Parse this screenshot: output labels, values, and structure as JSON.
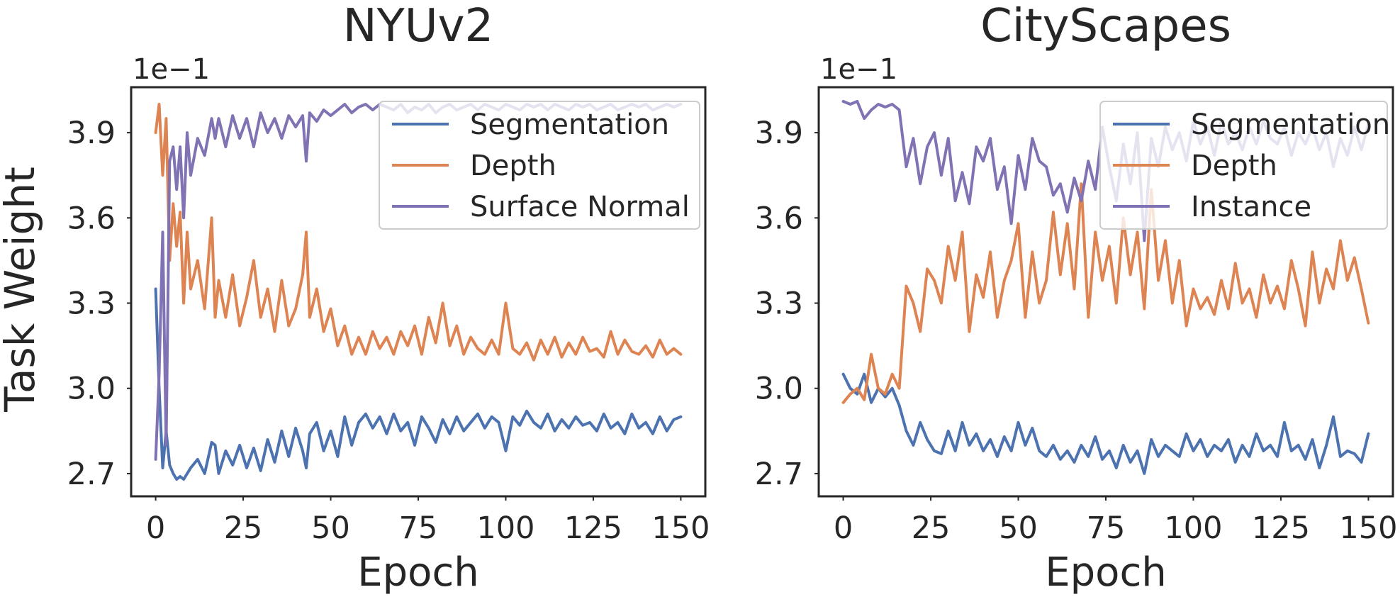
{
  "figure": {
    "ylabel": "Task Weight",
    "xlabel": "Epoch"
  },
  "chart_data": [
    {
      "type": "line",
      "title": "NYUv2",
      "xlabel": "Epoch",
      "ylabel": "Task Weight",
      "y_offset_label": "1e−1",
      "xlim": [
        -7,
        157
      ],
      "ylim": [
        2.62,
        4.06
      ],
      "xticks": [
        0,
        25,
        50,
        75,
        100,
        125,
        150
      ],
      "yticks": [
        2.7,
        3.0,
        3.3,
        3.6,
        3.9
      ],
      "ytick_labels": [
        "2.7",
        "3.0",
        "3.3",
        "3.6",
        "3.9"
      ],
      "grid": false,
      "legend_position": "top-right",
      "series": [
        {
          "name": "Segmentation",
          "color": "#4c72b0",
          "x": [
            0,
            1,
            2,
            3,
            4,
            5,
            6,
            7,
            8,
            10,
            12,
            14,
            16,
            17,
            18,
            20,
            22,
            24,
            26,
            28,
            30,
            32,
            34,
            36,
            38,
            40,
            42,
            43,
            44,
            46,
            48,
            50,
            52,
            54,
            56,
            58,
            60,
            62,
            64,
            66,
            68,
            70,
            72,
            74,
            76,
            78,
            80,
            82,
            84,
            86,
            88,
            90,
            92,
            94,
            96,
            98,
            100,
            102,
            104,
            106,
            108,
            110,
            112,
            114,
            116,
            118,
            120,
            122,
            124,
            126,
            128,
            130,
            132,
            134,
            136,
            138,
            140,
            142,
            144,
            146,
            148,
            150
          ],
          "y": [
            3.35,
            3.0,
            2.72,
            2.85,
            2.73,
            2.7,
            2.68,
            2.69,
            2.68,
            2.72,
            2.75,
            2.7,
            2.81,
            2.8,
            2.7,
            2.78,
            2.73,
            2.8,
            2.72,
            2.79,
            2.71,
            2.82,
            2.74,
            2.85,
            2.76,
            2.86,
            2.78,
            2.72,
            2.84,
            2.88,
            2.78,
            2.85,
            2.76,
            2.9,
            2.8,
            2.88,
            2.91,
            2.86,
            2.9,
            2.84,
            2.91,
            2.85,
            2.88,
            2.8,
            2.9,
            2.86,
            2.81,
            2.89,
            2.84,
            2.9,
            2.85,
            2.88,
            2.91,
            2.86,
            2.9,
            2.88,
            2.78,
            2.9,
            2.87,
            2.92,
            2.88,
            2.86,
            2.91,
            2.85,
            2.89,
            2.86,
            2.9,
            2.87,
            2.88,
            2.85,
            2.91,
            2.86,
            2.88,
            2.84,
            2.91,
            2.86,
            2.88,
            2.84,
            2.9,
            2.85,
            2.89,
            2.9
          ]
        },
        {
          "name": "Depth",
          "color": "#dd8452",
          "x": [
            0,
            1,
            2,
            3,
            4,
            5,
            6,
            7,
            8,
            9,
            10,
            12,
            14,
            16,
            17,
            18,
            20,
            22,
            24,
            26,
            28,
            30,
            32,
            34,
            36,
            38,
            40,
            42,
            43,
            44,
            46,
            48,
            50,
            52,
            54,
            56,
            58,
            60,
            62,
            64,
            66,
            68,
            70,
            72,
            74,
            76,
            78,
            80,
            82,
            84,
            86,
            88,
            90,
            92,
            94,
            96,
            98,
            100,
            102,
            104,
            106,
            108,
            110,
            112,
            114,
            116,
            118,
            120,
            122,
            124,
            126,
            128,
            130,
            132,
            134,
            136,
            138,
            140,
            142,
            144,
            146,
            148,
            150
          ],
          "y": [
            3.9,
            4.0,
            3.75,
            3.95,
            3.45,
            3.65,
            3.5,
            3.62,
            3.3,
            3.55,
            3.35,
            3.45,
            3.28,
            3.6,
            3.25,
            3.38,
            3.25,
            3.4,
            3.22,
            3.32,
            3.45,
            3.25,
            3.35,
            3.2,
            3.38,
            3.22,
            3.28,
            3.4,
            3.55,
            3.25,
            3.35,
            3.2,
            3.28,
            3.15,
            3.22,
            3.12,
            3.18,
            3.12,
            3.2,
            3.14,
            3.18,
            3.12,
            3.2,
            3.15,
            3.22,
            3.12,
            3.25,
            3.16,
            3.3,
            3.15,
            3.22,
            3.12,
            3.18,
            3.14,
            3.12,
            3.17,
            3.12,
            3.3,
            3.14,
            3.12,
            3.16,
            3.1,
            3.17,
            3.12,
            3.18,
            3.11,
            3.16,
            3.12,
            3.18,
            3.13,
            3.14,
            3.11,
            3.2,
            3.12,
            3.17,
            3.13,
            3.12,
            3.15,
            3.11,
            3.17,
            3.12,
            3.14,
            3.12
          ]
        },
        {
          "name": "Surface Normal",
          "color": "#8172b3",
          "x": [
            0,
            1,
            2,
            3,
            4,
            5,
            6,
            7,
            8,
            9,
            10,
            12,
            14,
            16,
            17,
            18,
            20,
            22,
            24,
            26,
            28,
            30,
            32,
            34,
            36,
            38,
            40,
            42,
            43,
            44,
            46,
            48,
            50,
            52,
            54,
            56,
            58,
            60,
            62,
            64,
            66,
            68,
            70,
            72,
            74,
            76,
            78,
            80,
            82,
            84,
            86,
            88,
            90,
            92,
            94,
            96,
            98,
            100,
            102,
            104,
            106,
            108,
            110,
            112,
            114,
            116,
            118,
            120,
            122,
            124,
            126,
            128,
            130,
            132,
            134,
            136,
            138,
            140,
            142,
            144,
            146,
            148,
            150
          ],
          "y": [
            2.75,
            3.05,
            3.55,
            2.8,
            3.8,
            3.85,
            3.7,
            3.85,
            3.6,
            3.9,
            3.75,
            3.88,
            3.82,
            3.95,
            3.88,
            3.95,
            3.85,
            3.96,
            3.88,
            3.95,
            3.85,
            3.97,
            3.9,
            3.95,
            3.88,
            3.96,
            3.92,
            3.96,
            3.8,
            3.97,
            3.94,
            3.98,
            3.96,
            3.98,
            4.0,
            3.97,
            3.99,
            4.0,
            3.98,
            4.0,
            3.99,
            3.98,
            4.0,
            3.97,
            3.99,
            3.98,
            4.0,
            3.97,
            3.99,
            4.0,
            3.98,
            3.99,
            4.0,
            3.98,
            4.0,
            3.99,
            3.98,
            4.0,
            3.99,
            3.98,
            4.0,
            3.99,
            4.0,
            3.98,
            4.0,
            3.99,
            3.98,
            4.0,
            3.99,
            4.0,
            3.98,
            3.99,
            4.0,
            3.98,
            3.99,
            4.0,
            3.99,
            4.0,
            3.98,
            3.99,
            4.0,
            3.99,
            4.0
          ]
        }
      ]
    },
    {
      "type": "line",
      "title": "CityScapes",
      "xlabel": "Epoch",
      "ylabel": "",
      "y_offset_label": "1e−1",
      "xlim": [
        -7,
        157
      ],
      "ylim": [
        2.62,
        4.06
      ],
      "xticks": [
        0,
        25,
        50,
        75,
        100,
        125,
        150
      ],
      "yticks": [
        2.7,
        3.0,
        3.3,
        3.6,
        3.9
      ],
      "ytick_labels": [
        "2.7",
        "3.0",
        "3.3",
        "3.6",
        "3.9"
      ],
      "grid": false,
      "legend_position": "top-right",
      "series": [
        {
          "name": "Segmentation",
          "color": "#4c72b0",
          "x": [
            0,
            2,
            4,
            6,
            8,
            10,
            12,
            14,
            16,
            18,
            20,
            22,
            24,
            26,
            28,
            30,
            32,
            34,
            36,
            38,
            40,
            42,
            44,
            46,
            48,
            50,
            52,
            54,
            56,
            58,
            60,
            62,
            64,
            66,
            68,
            70,
            72,
            74,
            76,
            78,
            80,
            82,
            84,
            86,
            88,
            90,
            92,
            94,
            96,
            98,
            100,
            102,
            104,
            106,
            108,
            110,
            112,
            114,
            116,
            118,
            120,
            122,
            124,
            126,
            128,
            130,
            132,
            134,
            136,
            138,
            140,
            142,
            144,
            146,
            148,
            150
          ],
          "y": [
            3.05,
            3.0,
            2.98,
            3.05,
            2.95,
            3.0,
            2.97,
            3.0,
            2.94,
            2.85,
            2.8,
            2.88,
            2.82,
            2.78,
            2.77,
            2.85,
            2.78,
            2.88,
            2.8,
            2.84,
            2.78,
            2.82,
            2.76,
            2.83,
            2.78,
            2.88,
            2.8,
            2.86,
            2.78,
            2.76,
            2.8,
            2.75,
            2.78,
            2.74,
            2.8,
            2.76,
            2.83,
            2.75,
            2.78,
            2.72,
            2.8,
            2.74,
            2.78,
            2.7,
            2.82,
            2.76,
            2.8,
            2.78,
            2.76,
            2.84,
            2.78,
            2.82,
            2.76,
            2.8,
            2.78,
            2.82,
            2.74,
            2.8,
            2.76,
            2.84,
            2.78,
            2.8,
            2.76,
            2.88,
            2.78,
            2.8,
            2.75,
            2.82,
            2.72,
            2.8,
            2.9,
            2.76,
            2.78,
            2.77,
            2.74,
            2.84
          ]
        },
        {
          "name": "Depth",
          "color": "#dd8452",
          "x": [
            0,
            2,
            4,
            6,
            8,
            10,
            12,
            14,
            16,
            18,
            20,
            22,
            24,
            26,
            28,
            30,
            32,
            34,
            36,
            38,
            40,
            42,
            44,
            46,
            48,
            50,
            52,
            54,
            56,
            58,
            60,
            62,
            64,
            66,
            68,
            70,
            72,
            74,
            76,
            78,
            80,
            82,
            84,
            86,
            88,
            90,
            92,
            94,
            96,
            98,
            100,
            102,
            104,
            106,
            108,
            110,
            112,
            114,
            116,
            118,
            120,
            122,
            124,
            126,
            128,
            130,
            132,
            134,
            136,
            138,
            140,
            142,
            144,
            146,
            148,
            150
          ],
          "y": [
            2.95,
            2.98,
            3.0,
            2.96,
            3.12,
            3.0,
            2.98,
            3.05,
            3.0,
            3.36,
            3.3,
            3.2,
            3.42,
            3.38,
            3.3,
            3.5,
            3.38,
            3.55,
            3.2,
            3.4,
            3.32,
            3.48,
            3.25,
            3.38,
            3.45,
            3.58,
            3.25,
            3.48,
            3.3,
            3.38,
            3.62,
            3.4,
            3.58,
            3.35,
            3.72,
            3.25,
            3.55,
            3.38,
            3.5,
            3.3,
            3.6,
            3.4,
            3.55,
            3.28,
            3.7,
            3.38,
            3.52,
            3.3,
            3.45,
            3.22,
            3.35,
            3.28,
            3.32,
            3.26,
            3.38,
            3.28,
            3.44,
            3.3,
            3.35,
            3.25,
            3.4,
            3.3,
            3.36,
            3.28,
            3.45,
            3.35,
            3.22,
            3.48,
            3.3,
            3.42,
            3.35,
            3.52,
            3.38,
            3.46,
            3.35,
            3.23
          ]
        },
        {
          "name": "Instance",
          "color": "#8172b3",
          "x": [
            0,
            2,
            4,
            6,
            8,
            10,
            12,
            14,
            16,
            18,
            20,
            22,
            24,
            26,
            28,
            30,
            32,
            34,
            36,
            38,
            40,
            42,
            44,
            46,
            48,
            50,
            52,
            54,
            56,
            58,
            60,
            62,
            64,
            66,
            68,
            70,
            72,
            74,
            76,
            78,
            80,
            82,
            84,
            86,
            88,
            90,
            92,
            94,
            96,
            98,
            100,
            102,
            104,
            106,
            108,
            110,
            112,
            114,
            116,
            118,
            120,
            122,
            124,
            126,
            128,
            130,
            132,
            134,
            136,
            138,
            140,
            142,
            144,
            146,
            148,
            150
          ],
          "y": [
            4.01,
            4.0,
            4.01,
            3.95,
            3.98,
            4.0,
            3.99,
            4.0,
            3.98,
            3.78,
            3.88,
            3.72,
            3.85,
            3.9,
            3.75,
            3.88,
            3.66,
            3.76,
            3.65,
            3.85,
            3.8,
            3.88,
            3.7,
            3.78,
            3.58,
            3.82,
            3.7,
            3.88,
            3.8,
            3.78,
            3.68,
            3.72,
            3.62,
            3.74,
            3.66,
            3.8,
            3.7,
            3.92,
            3.78,
            3.66,
            3.86,
            3.72,
            3.9,
            3.52,
            3.88,
            3.78,
            3.92,
            3.84,
            3.9,
            3.8,
            3.94,
            3.86,
            3.92,
            3.82,
            3.94,
            3.86,
            3.9,
            3.84,
            3.92,
            3.86,
            3.94,
            3.88,
            3.86,
            3.92,
            3.82,
            3.9,
            3.86,
            3.92,
            3.84,
            3.9,
            3.78,
            3.88,
            3.82,
            3.92,
            3.84,
            3.93
          ]
        }
      ]
    }
  ]
}
